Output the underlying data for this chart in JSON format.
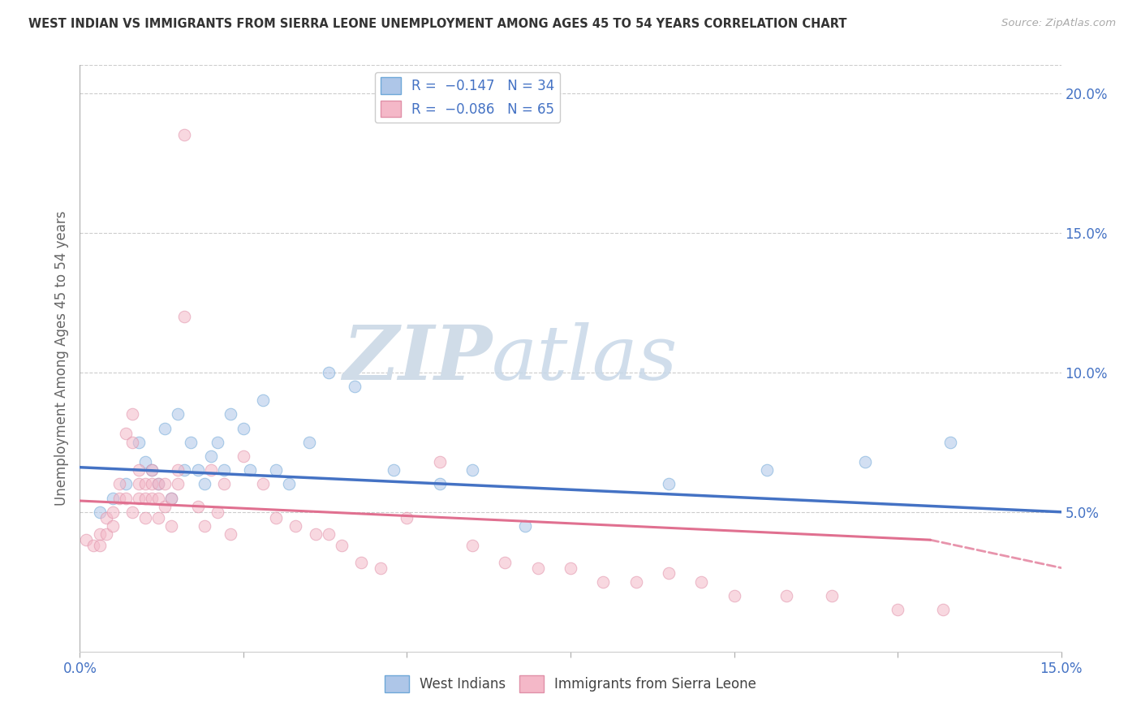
{
  "title": "WEST INDIAN VS IMMIGRANTS FROM SIERRA LEONE UNEMPLOYMENT AMONG AGES 45 TO 54 YEARS CORRELATION CHART",
  "source": "Source: ZipAtlas.com",
  "ylabel": "Unemployment Among Ages 45 to 54 years",
  "xlim": [
    0.0,
    0.15
  ],
  "ylim": [
    0.0,
    0.21
  ],
  "x_ticks": [
    0.0,
    0.025,
    0.05,
    0.075,
    0.1,
    0.125,
    0.15
  ],
  "y_ticks_right": [
    0.05,
    0.1,
    0.15,
    0.2
  ],
  "y_tick_labels_right": [
    "5.0%",
    "10.0%",
    "15.0%",
    "20.0%"
  ],
  "blue_scatter_x": [
    0.003,
    0.005,
    0.007,
    0.009,
    0.01,
    0.011,
    0.012,
    0.013,
    0.014,
    0.015,
    0.016,
    0.017,
    0.018,
    0.019,
    0.02,
    0.021,
    0.022,
    0.023,
    0.025,
    0.026,
    0.028,
    0.03,
    0.032,
    0.035,
    0.038,
    0.042,
    0.048,
    0.055,
    0.06,
    0.068,
    0.09,
    0.105,
    0.12,
    0.133
  ],
  "blue_scatter_y": [
    0.05,
    0.055,
    0.06,
    0.075,
    0.068,
    0.065,
    0.06,
    0.08,
    0.055,
    0.085,
    0.065,
    0.075,
    0.065,
    0.06,
    0.07,
    0.075,
    0.065,
    0.085,
    0.08,
    0.065,
    0.09,
    0.065,
    0.06,
    0.075,
    0.1,
    0.095,
    0.065,
    0.06,
    0.065,
    0.045,
    0.06,
    0.065,
    0.068,
    0.075
  ],
  "pink_scatter_x": [
    0.001,
    0.002,
    0.003,
    0.003,
    0.004,
    0.004,
    0.005,
    0.005,
    0.006,
    0.006,
    0.007,
    0.007,
    0.008,
    0.008,
    0.008,
    0.009,
    0.009,
    0.009,
    0.01,
    0.01,
    0.01,
    0.011,
    0.011,
    0.011,
    0.012,
    0.012,
    0.012,
    0.013,
    0.013,
    0.014,
    0.014,
    0.015,
    0.015,
    0.016,
    0.016,
    0.018,
    0.019,
    0.02,
    0.021,
    0.022,
    0.023,
    0.025,
    0.028,
    0.03,
    0.033,
    0.036,
    0.038,
    0.04,
    0.043,
    0.046,
    0.05,
    0.055,
    0.06,
    0.065,
    0.07,
    0.075,
    0.08,
    0.085,
    0.09,
    0.095,
    0.1,
    0.108,
    0.115,
    0.125,
    0.132
  ],
  "pink_scatter_y": [
    0.04,
    0.038,
    0.042,
    0.038,
    0.048,
    0.042,
    0.05,
    0.045,
    0.06,
    0.055,
    0.078,
    0.055,
    0.085,
    0.075,
    0.05,
    0.055,
    0.065,
    0.06,
    0.06,
    0.055,
    0.048,
    0.065,
    0.055,
    0.06,
    0.055,
    0.06,
    0.048,
    0.052,
    0.06,
    0.055,
    0.045,
    0.06,
    0.065,
    0.185,
    0.12,
    0.052,
    0.045,
    0.065,
    0.05,
    0.06,
    0.042,
    0.07,
    0.06,
    0.048,
    0.045,
    0.042,
    0.042,
    0.038,
    0.032,
    0.03,
    0.048,
    0.068,
    0.038,
    0.032,
    0.03,
    0.03,
    0.025,
    0.025,
    0.028,
    0.025,
    0.02,
    0.02,
    0.02,
    0.015,
    0.015
  ],
  "blue_line_start_y": 0.066,
  "blue_line_end_y": 0.05,
  "pink_line_start_y": 0.054,
  "pink_line_end_solid_x": 0.13,
  "pink_line_end_solid_y": 0.04,
  "pink_line_end_dashed_x": 0.15,
  "pink_line_end_dashed_y": 0.03,
  "blue_line_color": "#4472c4",
  "pink_line_color": "#e07090",
  "watermark_zip": "ZIP",
  "watermark_atlas": "atlas",
  "background_color": "#ffffff",
  "grid_color": "#cccccc",
  "scatter_alpha": 0.55,
  "scatter_size": 110
}
